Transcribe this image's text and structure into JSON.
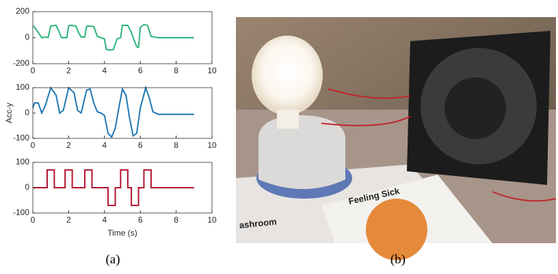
{
  "chart_data": [
    {
      "type": "line",
      "xlim": [
        0,
        10
      ],
      "xticks": [
        0,
        2,
        4,
        6,
        8,
        10
      ],
      "ylim": [
        -200,
        200
      ],
      "yticks": [
        -200,
        0,
        200
      ],
      "series": [
        {
          "color": "#2eb37a",
          "x": [
            0,
            0.1,
            0.3,
            0.5,
            0.7,
            0.85,
            1.0,
            1.3,
            1.45,
            1.6,
            1.9,
            2.0,
            2.1,
            2.4,
            2.55,
            2.7,
            2.9,
            3.0,
            3.1,
            3.4,
            3.6,
            3.8,
            4.0,
            4.1,
            4.3,
            4.5,
            4.7,
            4.9,
            5.0,
            5.3,
            5.5,
            5.6,
            5.8,
            5.9,
            6.0,
            6.2,
            6.4,
            6.6,
            6.8,
            7.0,
            9.0
          ],
          "values": [
            90,
            80,
            40,
            0,
            5,
            0,
            90,
            95,
            50,
            0,
            0,
            90,
            95,
            90,
            40,
            5,
            5,
            85,
            90,
            85,
            10,
            0,
            -10,
            -90,
            -95,
            -90,
            -10,
            0,
            95,
            95,
            40,
            0,
            -70,
            -75,
            80,
            100,
            95,
            10,
            5,
            0,
            0
          ]
        }
      ]
    },
    {
      "type": "line",
      "xlim": [
        0,
        10
      ],
      "xticks": [
        0,
        2,
        4,
        6,
        8,
        10
      ],
      "ylim": [
        -100,
        100
      ],
      "yticks": [
        -100,
        0,
        100
      ],
      "ylabel": "Acc-y",
      "series": [
        {
          "color": "#1f77b4",
          "x": [
            0,
            0.1,
            0.3,
            0.5,
            0.7,
            1.0,
            1.3,
            1.5,
            1.7,
            2.0,
            2.3,
            2.5,
            2.7,
            3.0,
            3.2,
            3.4,
            3.6,
            3.8,
            4.0,
            4.2,
            4.4,
            4.6,
            4.8,
            5.0,
            5.2,
            5.4,
            5.6,
            5.8,
            6.0,
            6.3,
            6.5,
            6.7,
            7.0,
            9.0
          ],
          "values": [
            20,
            40,
            40,
            0,
            30,
            100,
            70,
            0,
            10,
            100,
            80,
            10,
            0,
            90,
            95,
            40,
            5,
            0,
            -10,
            -80,
            -95,
            -60,
            20,
            95,
            70,
            -20,
            -90,
            -80,
            20,
            100,
            60,
            5,
            -5,
            -5
          ]
        }
      ]
    },
    {
      "type": "line",
      "xlim": [
        0,
        10
      ],
      "xticks": [
        0,
        2,
        4,
        6,
        8,
        10
      ],
      "ylim": [
        -100,
        100
      ],
      "yticks": [
        -100,
        0,
        100
      ],
      "xlabel": "Time (s)",
      "series": [
        {
          "color": "#b2132e",
          "x": [
            0,
            0.8,
            0.8,
            1.2,
            1.2,
            1.8,
            1.8,
            2.2,
            2.2,
            2.9,
            2.9,
            3.3,
            3.3,
            4.2,
            4.2,
            4.6,
            4.6,
            4.9,
            4.9,
            5.3,
            5.3,
            5.5,
            5.5,
            5.9,
            5.9,
            6.2,
            6.2,
            6.6,
            6.6,
            9.0
          ],
          "values": [
            0,
            0,
            70,
            70,
            0,
            0,
            70,
            70,
            0,
            0,
            70,
            70,
            0,
            0,
            -70,
            -70,
            0,
            0,
            70,
            70,
            0,
            0,
            -70,
            -70,
            0,
            0,
            70,
            70,
            0,
            0
          ]
        }
      ]
    }
  ],
  "captions": [
    "(a)",
    "(b)"
  ],
  "photo": {
    "texts": [
      "Feeling Sick",
      "ashroom"
    ]
  }
}
